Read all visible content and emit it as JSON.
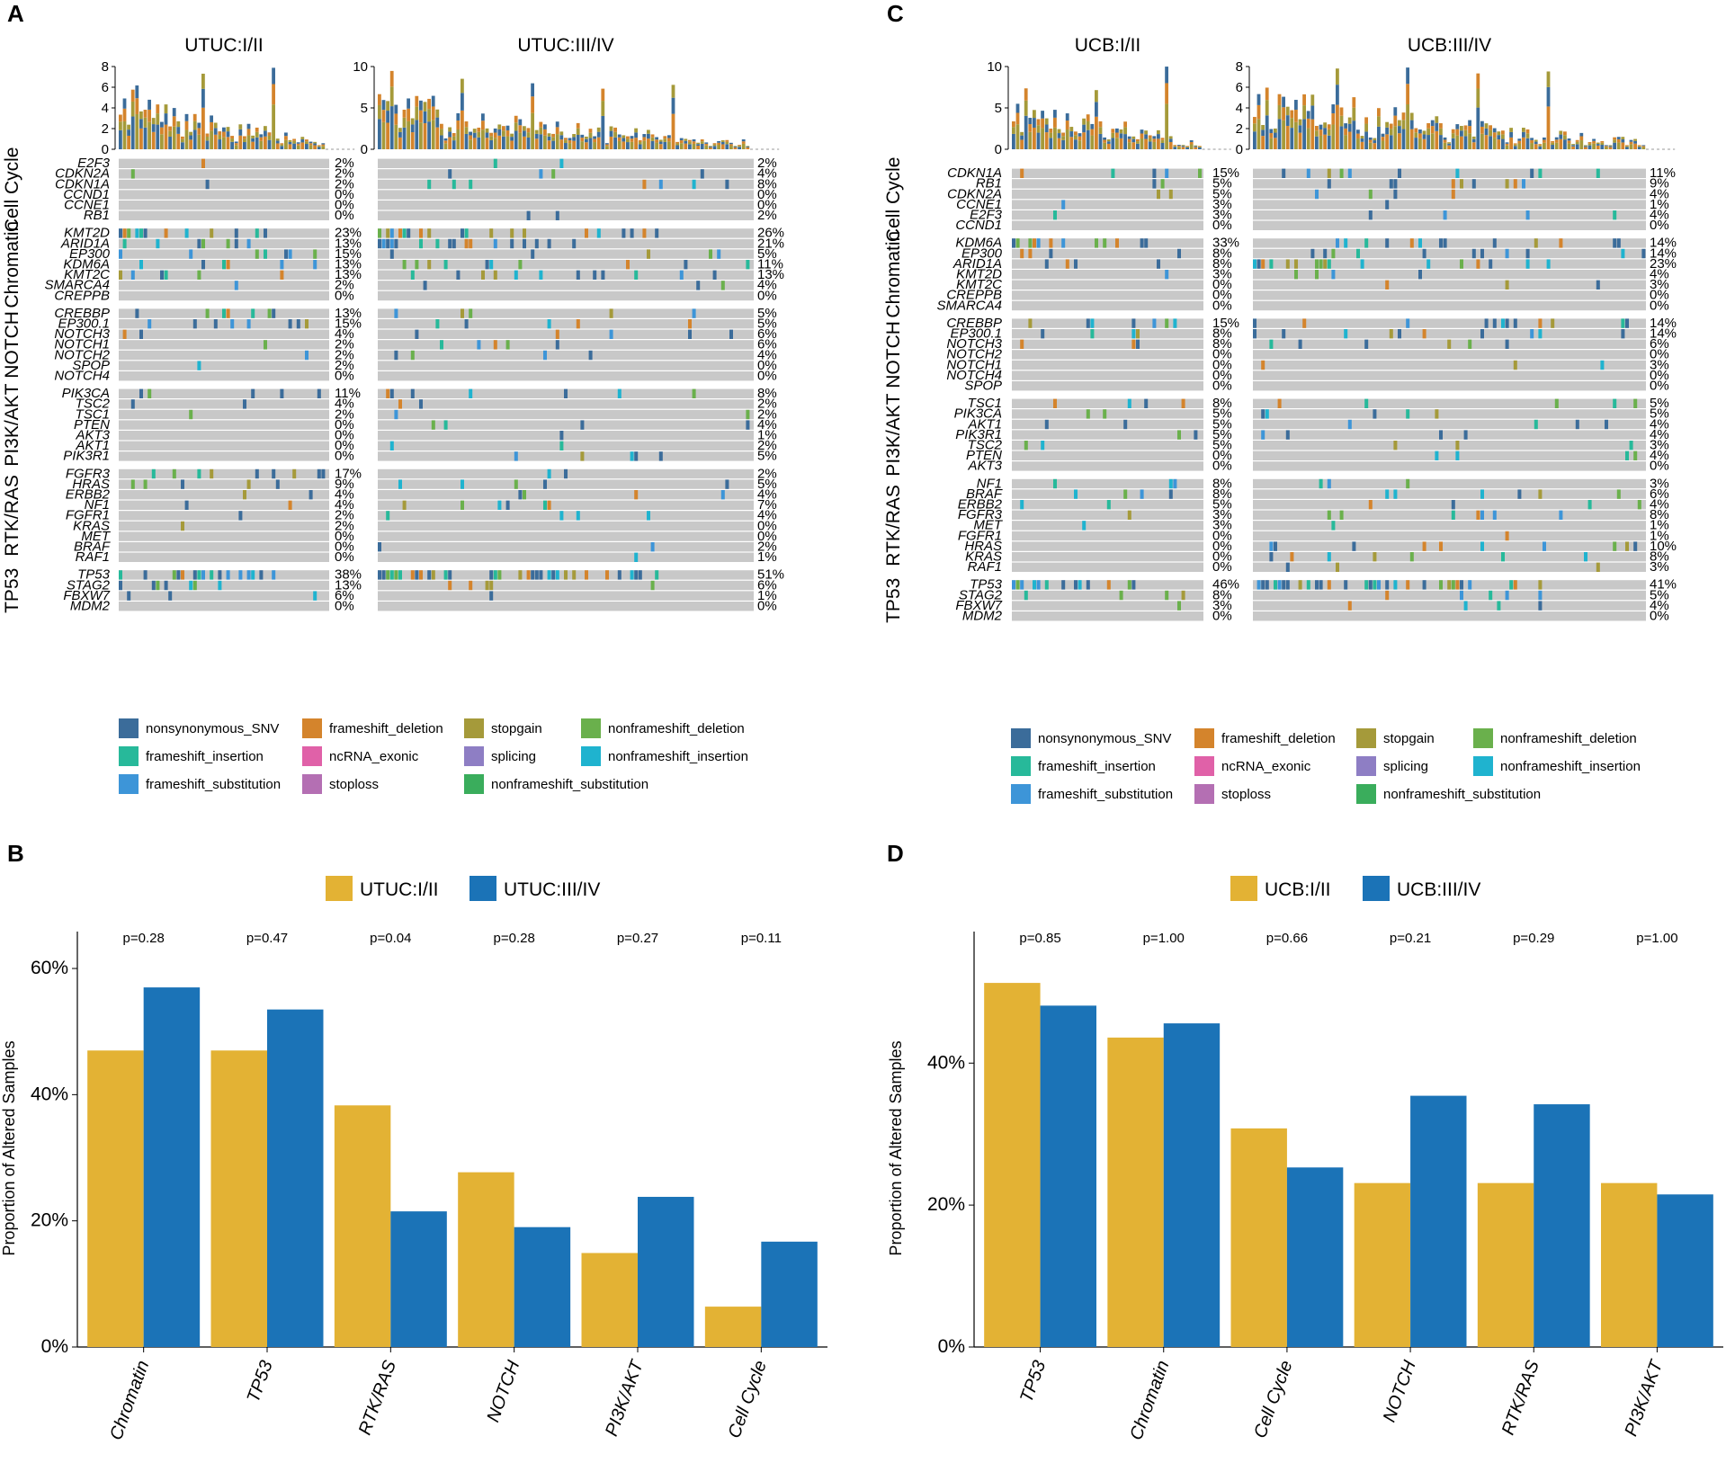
{
  "colors": {
    "nonsynonymous_SNV": "#3b6c9a",
    "frameshift_deletion": "#d4842c",
    "stopgain": "#a59a3a",
    "nonframeshift_deletion": "#6ab04c",
    "frameshift_insertion": "#27b99a",
    "ncRNA_exonic": "#e061a8",
    "splicing": "#8e7ec4",
    "nonframeshift_insertion": "#1fb3cf",
    "frameshift_substitution": "#3d95d8",
    "stoploss": "#b46fb3",
    "nonframeshift_substitution": "#3aad5c",
    "bg": "#c8c8c8",
    "early": "#e3b234",
    "late": "#1b73b7"
  },
  "legend": [
    {
      "key": "nonsynonymous_SNV",
      "label": "nonsynonymous_SNV"
    },
    {
      "key": "frameshift_deletion",
      "label": "frameshift_deletion"
    },
    {
      "key": "stopgain",
      "label": "stopgain"
    },
    {
      "key": "nonframeshift_deletion",
      "label": "nonframeshift_deletion"
    },
    {
      "key": "frameshift_insertion",
      "label": "frameshift_insertion"
    },
    {
      "key": "ncRNA_exonic",
      "label": "ncRNA_exonic"
    },
    {
      "key": "splicing",
      "label": "splicing"
    },
    {
      "key": "nonframeshift_insertion",
      "label": "nonframeshift_insertion"
    },
    {
      "key": "frameshift_substitution",
      "label": "frameshift_substitution"
    },
    {
      "key": "stoploss",
      "label": "stoploss"
    },
    {
      "key": "nonframeshift_substitution",
      "label": "nonframeshift_substitution"
    }
  ],
  "chart_data": [
    {
      "panel": "A",
      "type": "heatmap",
      "subtype": "oncoprint",
      "titles": [
        "UTUC:I/II",
        "UTUC:III/IV"
      ],
      "top_axis_ticks": [
        [
          0,
          2,
          4,
          6,
          8
        ],
        [
          0,
          5,
          10
        ]
      ],
      "top_max": [
        8,
        10
      ],
      "groups": [
        {
          "name": "Cell Cycle",
          "genes": [
            "E2F3",
            "CDKN2A",
            "CDKN1A",
            "CCND1",
            "CCNE1",
            "RB1"
          ],
          "pct_early": [
            "2%",
            "2%",
            "2%",
            "0%",
            "0%",
            "0%"
          ],
          "pct_late": [
            "2%",
            "4%",
            "8%",
            "0%",
            "0%",
            "2%"
          ]
        },
        {
          "name": "Chromatin",
          "genes": [
            "KMT2D",
            "ARID1A",
            "EP300",
            "KDM6A",
            "KMT2C",
            "SMARCA4",
            "CREPPB"
          ],
          "pct_early": [
            "23%",
            "13%",
            "15%",
            "13%",
            "13%",
            "2%",
            "0%"
          ],
          "pct_late": [
            "26%",
            "21%",
            "5%",
            "11%",
            "13%",
            "4%",
            "0%"
          ]
        },
        {
          "name": "NOTCH",
          "genes": [
            "CREBBP",
            "EP300.1",
            "NOTCH3",
            "NOTCH1",
            "NOTCH2",
            "SPOP",
            "NOTCH4"
          ],
          "pct_early": [
            "13%",
            "15%",
            "4%",
            "2%",
            "2%",
            "2%",
            "0%"
          ],
          "pct_late": [
            "5%",
            "5%",
            "6%",
            "6%",
            "4%",
            "0%",
            "0%"
          ]
        },
        {
          "name": "PI3K/AKT",
          "genes": [
            "PIK3CA",
            "TSC2",
            "TSC1",
            "PTEN",
            "AKT3",
            "AKT1",
            "PIK3R1"
          ],
          "pct_early": [
            "11%",
            "4%",
            "2%",
            "0%",
            "0%",
            "0%",
            "0%"
          ],
          "pct_late": [
            "8%",
            "2%",
            "2%",
            "4%",
            "1%",
            "2%",
            "5%"
          ]
        },
        {
          "name": "RTK/RAS",
          "genes": [
            "FGFR3",
            "HRAS",
            "ERBB2",
            "NF1",
            "FGFR1",
            "KRAS",
            "MET",
            "BRAF",
            "RAF1"
          ],
          "pct_early": [
            "17%",
            "9%",
            "4%",
            "4%",
            "2%",
            "2%",
            "0%",
            "0%",
            "0%"
          ],
          "pct_late": [
            "2%",
            "5%",
            "4%",
            "7%",
            "4%",
            "0%",
            "0%",
            "2%",
            "1%"
          ]
        },
        {
          "name": "TP53",
          "genes": [
            "TP53",
            "STAG2",
            "FBXW7",
            "MDM2"
          ],
          "pct_early": [
            "38%",
            "13%",
            "6%",
            "0%"
          ],
          "pct_late": [
            "51%",
            "6%",
            "1%",
            "0%"
          ]
        }
      ]
    },
    {
      "panel": "C",
      "type": "heatmap",
      "subtype": "oncoprint",
      "titles": [
        "UCB:I/II",
        "UCB:III/IV"
      ],
      "top_axis_ticks": [
        [
          0,
          5,
          10
        ],
        [
          0,
          2,
          4,
          6,
          8
        ]
      ],
      "top_max": [
        10,
        8
      ],
      "groups": [
        {
          "name": "Cell Cycle",
          "genes": [
            "CDKN1A",
            "RB1",
            "CDKN2A",
            "CCNE1",
            "E2F3",
            "CCND1"
          ],
          "pct_early": [
            "15%",
            "5%",
            "5%",
            "3%",
            "3%",
            "0%"
          ],
          "pct_late": [
            "11%",
            "9%",
            "4%",
            "1%",
            "4%",
            "0%"
          ]
        },
        {
          "name": "Chromatin",
          "genes": [
            "KDM6A",
            "EP300",
            "ARID1A",
            "KMT2D",
            "KMT2C",
            "CREPPB",
            "SMARCA4"
          ],
          "pct_early": [
            "33%",
            "8%",
            "8%",
            "3%",
            "0%",
            "0%",
            "0%"
          ],
          "pct_late": [
            "14%",
            "14%",
            "23%",
            "4%",
            "3%",
            "0%",
            "0%"
          ]
        },
        {
          "name": "NOTCH",
          "genes": [
            "CREBBP",
            "EP300.1",
            "NOTCH3",
            "NOTCH2",
            "NOTCH1",
            "NOTCH4",
            "SPOP"
          ],
          "pct_early": [
            "15%",
            "8%",
            "8%",
            "0%",
            "0%",
            "0%",
            "0%"
          ],
          "pct_late": [
            "14%",
            "14%",
            "6%",
            "0%",
            "3%",
            "0%",
            "0%"
          ]
        },
        {
          "name": "PI3K/AKT",
          "genes": [
            "TSC1",
            "PIK3CA",
            "AKT1",
            "PIK3R1",
            "TSC2",
            "PTEN",
            "AKT3"
          ],
          "pct_early": [
            "8%",
            "5%",
            "5%",
            "5%",
            "5%",
            "0%",
            "0%"
          ],
          "pct_late": [
            "5%",
            "5%",
            "4%",
            "4%",
            "3%",
            "4%",
            "0%"
          ]
        },
        {
          "name": "RTK/RAS",
          "genes": [
            "NF1",
            "BRAF",
            "ERBB2",
            "FGFR3",
            "MET",
            "FGFR1",
            "HRAS",
            "KRAS",
            "RAF1"
          ],
          "pct_early": [
            "8%",
            "8%",
            "5%",
            "3%",
            "3%",
            "0%",
            "0%",
            "0%",
            "0%"
          ],
          "pct_late": [
            "3%",
            "6%",
            "4%",
            "8%",
            "1%",
            "1%",
            "10%",
            "8%",
            "3%"
          ]
        },
        {
          "name": "TP53",
          "genes": [
            "TP53",
            "STAG2",
            "FBXW7",
            "MDM2"
          ],
          "pct_early": [
            "46%",
            "8%",
            "3%",
            "0%"
          ],
          "pct_late": [
            "41%",
            "5%",
            "4%",
            "0%"
          ]
        }
      ]
    },
    {
      "panel": "B",
      "type": "bar",
      "ylabel": "Proportion of Altered Samples",
      "yticks": [
        "0%",
        "20%",
        "40%",
        "60%"
      ],
      "ylim": [
        0,
        0.63
      ],
      "series_names": [
        "UTUC:I/II",
        "UTUC:III/IV"
      ],
      "categories": [
        "Chromatin",
        "TP53",
        "RTK/RAS",
        "NOTCH",
        "PI3K/AKT",
        "Cell Cycle"
      ],
      "pvalues": [
        "p=0.28",
        "p=0.47",
        "p=0.04",
        "p=0.28",
        "p=0.27",
        "p=0.11"
      ],
      "series": [
        {
          "name": "UTUC:I/II",
          "values": [
            0.47,
            0.47,
            0.383,
            0.277,
            0.149,
            0.064
          ]
        },
        {
          "name": "UTUC:III/IV",
          "values": [
            0.57,
            0.535,
            0.215,
            0.19,
            0.238,
            0.167
          ]
        }
      ]
    },
    {
      "panel": "D",
      "type": "bar",
      "ylabel": "Proportion of Altered Samples",
      "yticks": [
        "0%",
        "20%",
        "40%"
      ],
      "ylim": [
        0,
        0.56
      ],
      "series_names": [
        "UCB:I/II",
        "UCB:III/IV"
      ],
      "categories": [
        "TP53",
        "Chromatin",
        "Cell Cycle",
        "NOTCH",
        "RTK/RAS",
        "PI3K/AKT"
      ],
      "pvalues": [
        "p=0.85",
        "p=1.00",
        "p=0.66",
        "p=0.21",
        "p=0.29",
        "p=1.00"
      ],
      "series": [
        {
          "name": "UCB:I/II",
          "values": [
            0.513,
            0.436,
            0.308,
            0.231,
            0.231,
            0.231
          ]
        },
        {
          "name": "UCB:III/IV",
          "values": [
            0.481,
            0.456,
            0.253,
            0.354,
            0.342,
            0.215
          ]
        }
      ]
    }
  ]
}
